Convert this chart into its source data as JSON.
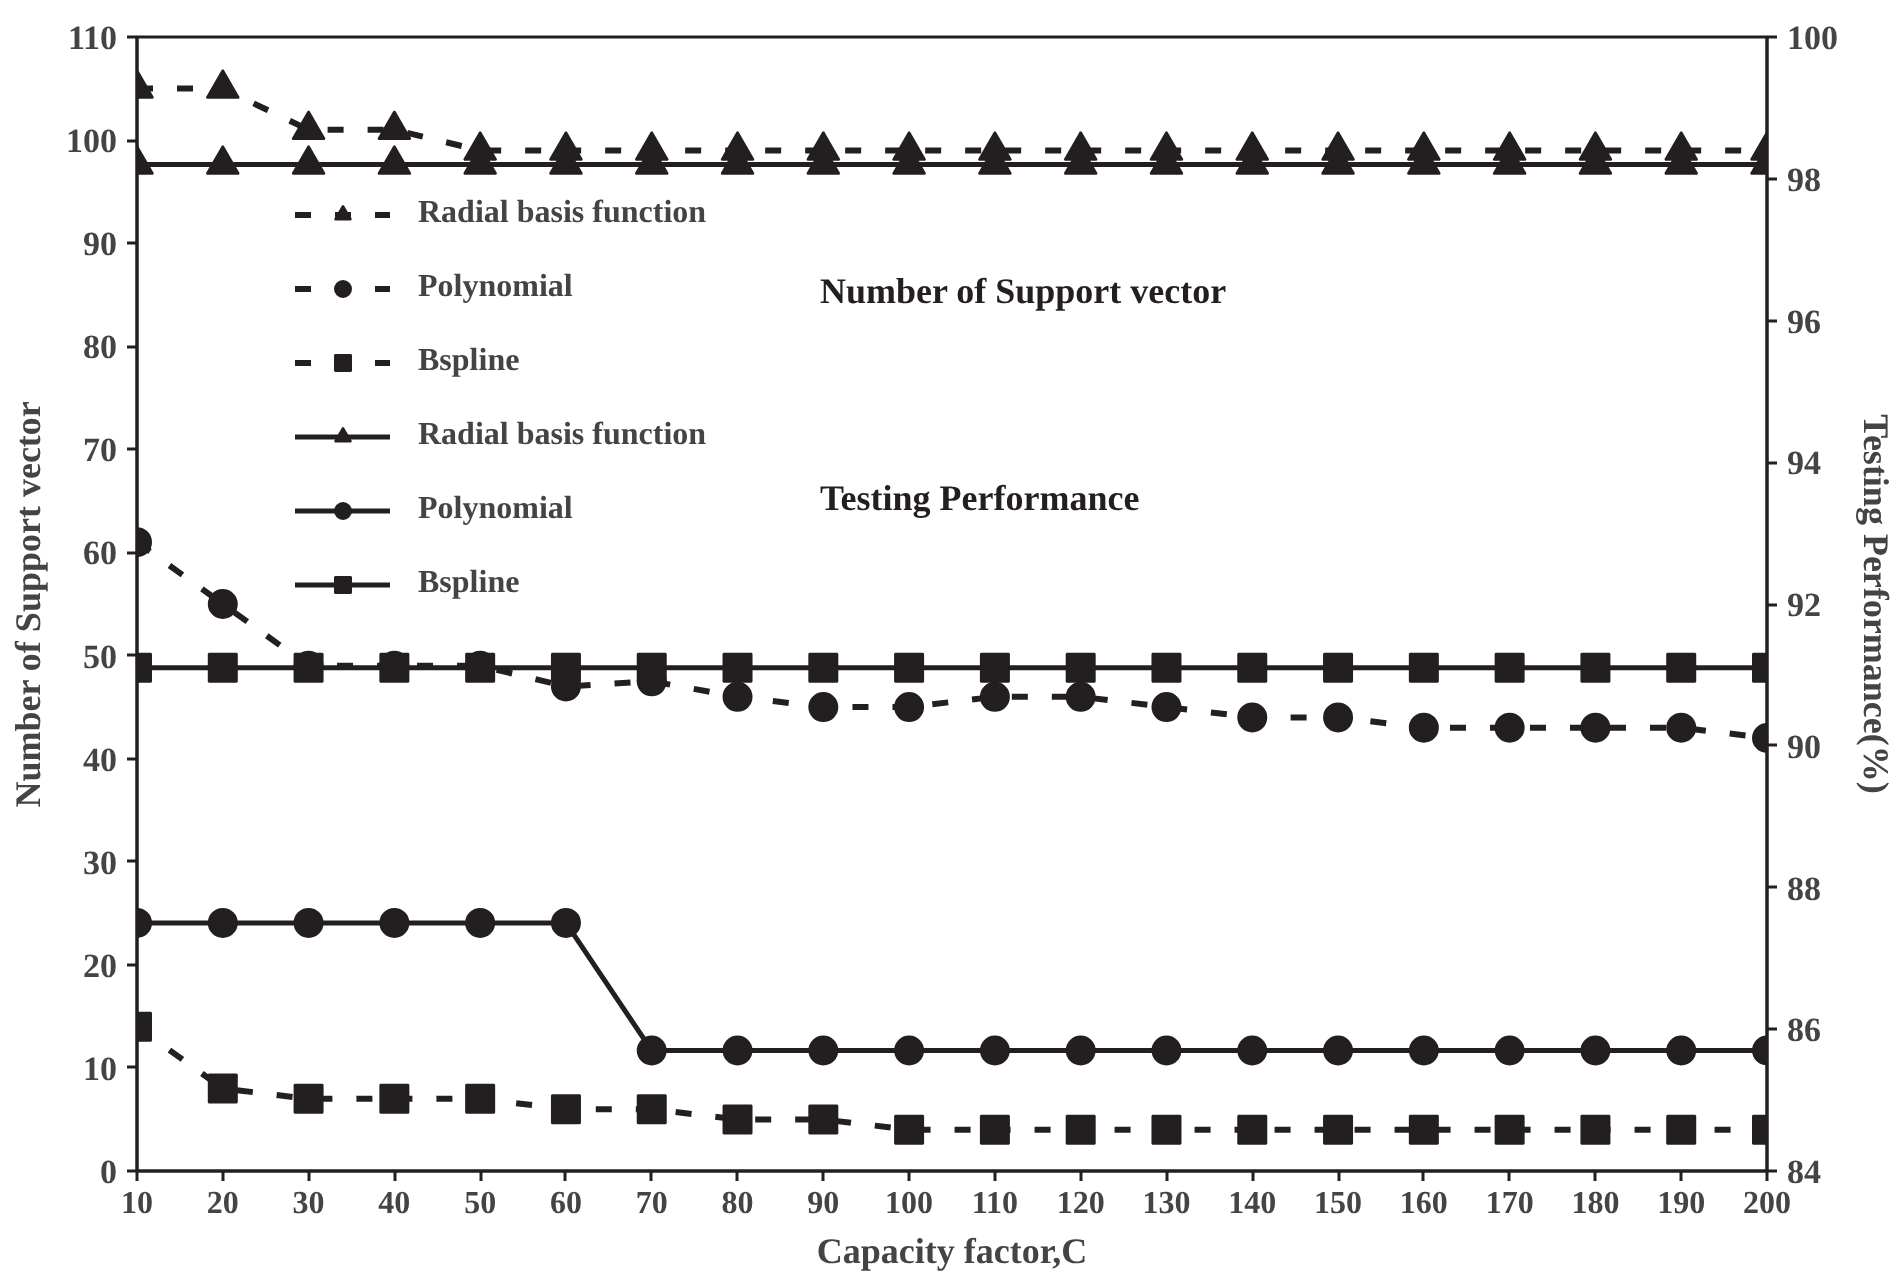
{
  "chart_data": {
    "type": "line",
    "xlabel": "Capacity factor,C",
    "ylabel": "Number of Support vector",
    "y2label": "Testing Performance(%)",
    "x": [
      10,
      20,
      30,
      40,
      50,
      60,
      70,
      80,
      90,
      100,
      110,
      120,
      130,
      140,
      150,
      160,
      170,
      180,
      190,
      200
    ],
    "xlim": [
      10,
      200
    ],
    "xticks": [
      10,
      20,
      30,
      40,
      50,
      60,
      70,
      80,
      90,
      100,
      110,
      120,
      130,
      140,
      150,
      160,
      170,
      180,
      190,
      200
    ],
    "ylim": [
      0,
      110
    ],
    "yticks": [
      0,
      10,
      20,
      30,
      40,
      50,
      60,
      70,
      80,
      90,
      100,
      110
    ],
    "y2lim": [
      84,
      100
    ],
    "y2ticks": [
      84,
      86,
      88,
      90,
      92,
      94,
      96,
      98,
      100
    ],
    "grid": false,
    "legend": "top left",
    "annotations": [
      "Number of Support vector",
      "Testing Performance"
    ],
    "series": [
      {
        "name": "Radial basis function",
        "color": "#231f20",
        "marker": "triangle",
        "line_style": "dashed",
        "values": [
          105,
          105,
          101,
          101,
          99,
          99,
          99,
          99,
          99,
          99,
          99,
          99,
          99,
          99,
          99,
          99,
          99,
          99,
          99,
          99
        ]
      },
      {
        "name": "Polynomial",
        "color": "#231f20",
        "marker": "circle",
        "line_style": "dashed",
        "values": [
          61,
          55,
          49,
          49,
          49,
          47,
          47.5,
          46,
          45,
          45,
          46,
          46,
          45,
          44,
          44,
          43,
          43,
          43,
          43,
          42
        ]
      },
      {
        "name": "Bspline",
        "color": "#231f20",
        "marker": "square",
        "line_style": "dashed",
        "values": [
          14,
          8,
          7,
          7,
          7,
          6,
          6,
          5,
          5,
          4,
          4,
          4,
          4,
          4,
          4,
          4,
          4,
          4,
          4,
          4
        ]
      },
      {
        "name": "Radial basis function",
        "color": "#231f20",
        "marker": "triangle",
        "line_style": "solid",
        "axis": "y2",
        "values": [
          98.2,
          98.2,
          98.2,
          98.2,
          98.2,
          98.2,
          98.2,
          98.2,
          98.2,
          98.2,
          98.2,
          98.2,
          98.2,
          98.2,
          98.2,
          98.2,
          98.2,
          98.2,
          98.2,
          98.2
        ]
      },
      {
        "name": "Polynomial",
        "color": "#231f20",
        "marker": "circle",
        "line_style": "solid",
        "axis": "y2",
        "values": [
          87.5,
          87.5,
          87.5,
          87.5,
          87.5,
          87.5,
          85.7,
          85.7,
          85.7,
          85.7,
          85.7,
          85.7,
          85.7,
          85.7,
          85.7,
          85.7,
          85.7,
          85.7,
          85.7,
          85.7
        ]
      },
      {
        "name": "Bspline",
        "color": "#231f20",
        "marker": "square",
        "line_style": "solid",
        "axis": "y2",
        "values": [
          91.1,
          91.1,
          91.1,
          91.1,
          91.1,
          91.1,
          91.1,
          91.1,
          91.1,
          91.1,
          91.1,
          91.1,
          91.1,
          91.1,
          91.1,
          91.1,
          91.1,
          91.1,
          91.1,
          91.1
        ]
      }
    ]
  }
}
